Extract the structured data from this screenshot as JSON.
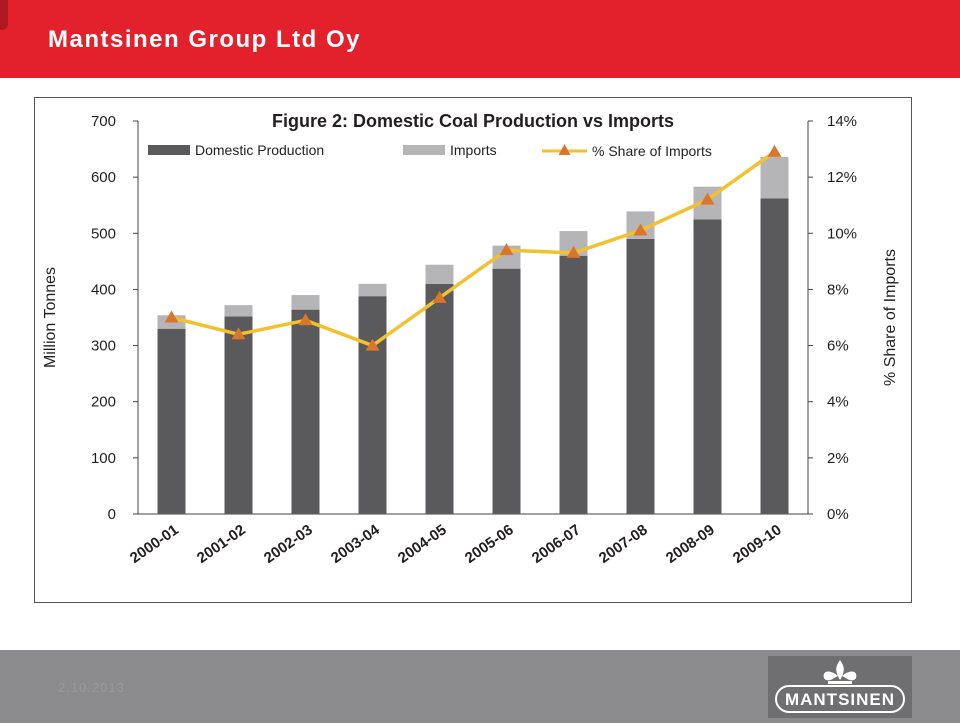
{
  "header": {
    "title": "Mantsinen Group Ltd Oy"
  },
  "footer": {
    "date": "2.10.2013",
    "logo_text": "MANTSINEN"
  },
  "colors": {
    "header_red": "#e2212d",
    "domestic": "#5a5a5c",
    "imports": "#b5b5b7",
    "share_line": "#f2c12e",
    "share_marker": "#d9762b",
    "footer_gray": "#8c8c8e"
  },
  "chart_data": {
    "type": "bar",
    "title": "Figure 2: Domestic Coal Production vs Imports",
    "categories": [
      "2000-01",
      "2001-02",
      "2002-03",
      "2003-04",
      "2004-05",
      "2005-06",
      "2006-07",
      "2007-08",
      "2008-09",
      "2009-10"
    ],
    "stacked": true,
    "series": [
      {
        "name": "Domestic Production",
        "axis": "left",
        "kind": "bar",
        "values": [
          330,
          352,
          364,
          388,
          410,
          437,
          460,
          490,
          525,
          562
        ]
      },
      {
        "name": "Imports",
        "axis": "left",
        "kind": "bar",
        "values": [
          24,
          20,
          26,
          22,
          34,
          41,
          44,
          49,
          58,
          74
        ]
      },
      {
        "name": "% Share of Imports",
        "axis": "right",
        "kind": "line",
        "values": [
          7.0,
          6.4,
          6.9,
          6.0,
          7.7,
          9.4,
          9.3,
          10.1,
          11.2,
          12.9
        ]
      }
    ],
    "ylabel": "Million Tonnes",
    "ylim": [
      0,
      700
    ],
    "yticks": [
      "0",
      "100",
      "200",
      "300",
      "400",
      "500",
      "600",
      "700"
    ],
    "y2label": "% Share of Imports",
    "y2lim": [
      0,
      14
    ],
    "y2ticks": [
      "0%",
      "2%",
      "4%",
      "6%",
      "8%",
      "10%",
      "12%",
      "14%"
    ],
    "grid": false,
    "legend_position": "top"
  }
}
